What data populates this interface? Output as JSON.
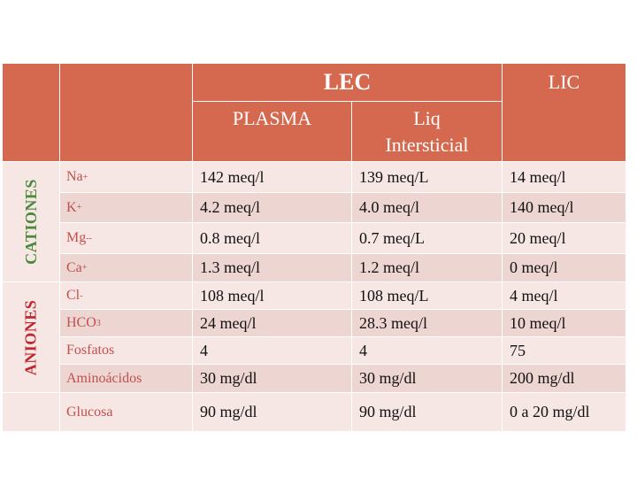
{
  "header": {
    "lec": "LEC",
    "lic": "LIC",
    "plasma": "PLASMA",
    "liq": [
      "Liq",
      "Intersticial"
    ]
  },
  "sections": [
    {
      "label": "CATIONES",
      "rows": [
        {
          "name": "Na",
          "sup": "+",
          "values": [
            "142 meq/l",
            "139 meq/L",
            "14 meq/l"
          ]
        },
        {
          "name": "K",
          "sup": "+",
          "values": [
            "4.2 meq/l",
            "4.0 meq/l",
            "140 meq/l"
          ]
        },
        {
          "name": "Mg",
          "sup": "--",
          "values": [
            "0.8 meq/l",
            "0.7 meq/L",
            "20 meq/l"
          ]
        },
        {
          "name": "Ca",
          "sup": "+",
          "values": [
            "1.3 meq/l",
            "1.2 meq/l",
            "0 meq/l"
          ]
        }
      ]
    },
    {
      "label": "ANIONES",
      "rows": [
        {
          "name": "Cl",
          "sup": "-",
          "values": [
            "108 meq/l",
            "108 meq/L",
            "4 meq/l"
          ]
        },
        {
          "name": "HCO",
          "sub": "3",
          "values": [
            "24 meq/l",
            "28.3 meq/l",
            "10 meq/l"
          ]
        },
        {
          "name": "Fosfatos",
          "values": [
            "4",
            "4",
            "75"
          ]
        },
        {
          "name": "Aminoácidos",
          "values": [
            "30 mg/dl",
            "30 mg/dl",
            "200 mg/dl"
          ]
        }
      ]
    },
    {
      "rows": [
        {
          "name": "Glucosa",
          "values": [
            "90 mg/dl",
            "90 mg/dl",
            "0 a 20 mg/dl"
          ]
        }
      ]
    }
  ]
}
